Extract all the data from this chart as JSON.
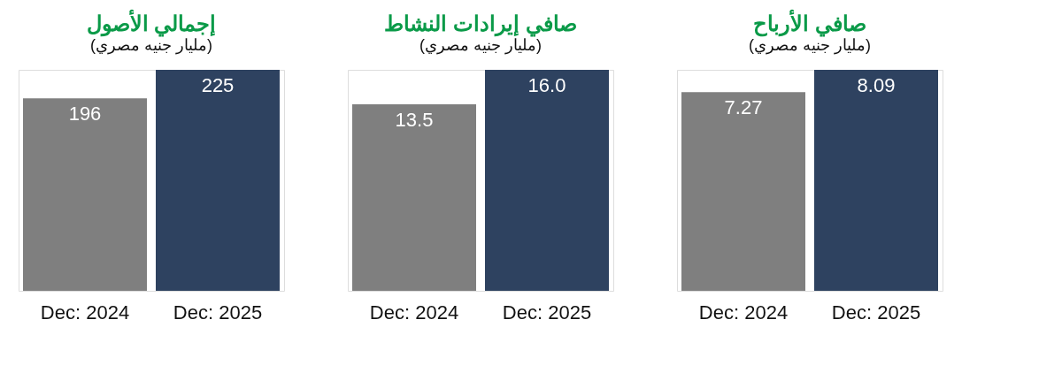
{
  "chart_data": [
    {
      "type": "bar",
      "title": "إجمالي الأصول",
      "subtitle": "(مليار جنيه مصري)",
      "categories": [
        "Dec: 2024",
        "Dec: 2025"
      ],
      "values": [
        196,
        225
      ],
      "colors": [
        "#7f7f7f",
        "#2e4260"
      ],
      "value_labels": [
        "196",
        "225"
      ]
    },
    {
      "type": "bar",
      "title": "صافي إيرادات النشاط",
      "subtitle": "(مليار جنيه مصري)",
      "categories": [
        "Dec: 2024",
        "Dec: 2025"
      ],
      "values": [
        13.5,
        16.0
      ],
      "colors": [
        "#7f7f7f",
        "#2e4260"
      ],
      "value_labels": [
        "13.5",
        "16.0"
      ]
    },
    {
      "type": "bar",
      "title": "صافي الأرباح",
      "subtitle": "(مليار جنيه مصري)",
      "categories": [
        "Dec: 2024",
        "Dec: 2025"
      ],
      "values": [
        7.27,
        8.09
      ],
      "colors": [
        "#7f7f7f",
        "#2e4260"
      ],
      "value_labels": [
        "7.27",
        "8.09"
      ]
    }
  ]
}
